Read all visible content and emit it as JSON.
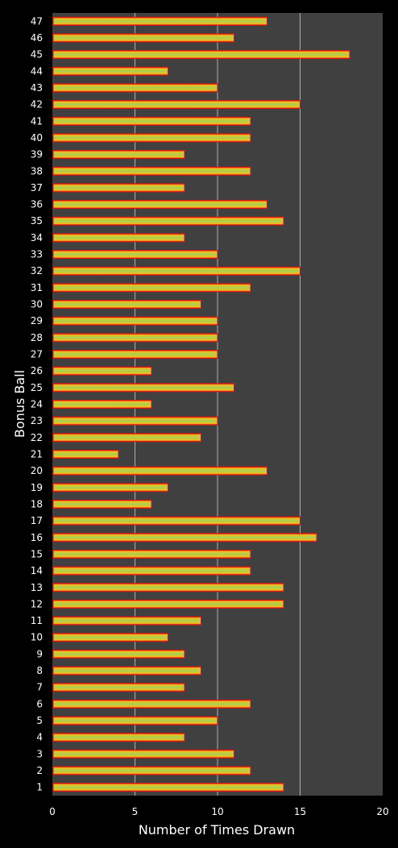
{
  "chart_data": {
    "type": "bar",
    "orientation": "horizontal",
    "xlabel": "Number of Times Drawn",
    "ylabel": "Bonus Ball",
    "xlim": [
      0,
      20
    ],
    "xticks": [
      0,
      5,
      10,
      15,
      20
    ],
    "grid": true,
    "categories": [
      "1",
      "2",
      "3",
      "4",
      "5",
      "6",
      "7",
      "8",
      "9",
      "10",
      "11",
      "12",
      "13",
      "14",
      "15",
      "16",
      "17",
      "18",
      "19",
      "20",
      "21",
      "22",
      "23",
      "24",
      "25",
      "26",
      "27",
      "28",
      "29",
      "30",
      "31",
      "32",
      "33",
      "34",
      "35",
      "36",
      "37",
      "38",
      "39",
      "40",
      "41",
      "42",
      "43",
      "44",
      "45",
      "46",
      "47"
    ],
    "values": [
      14,
      12,
      11,
      8,
      10,
      12,
      8,
      9,
      8,
      7,
      9,
      14,
      14,
      12,
      12,
      16,
      15,
      6,
      7,
      13,
      4,
      9,
      10,
      6,
      11,
      6,
      10,
      10,
      10,
      9,
      12,
      15,
      10,
      8,
      14,
      13,
      8,
      12,
      8,
      12,
      12,
      15,
      10,
      7,
      18,
      11,
      13
    ],
    "colors": {
      "background": "#000000",
      "plot_background": "#404040",
      "gridline": "#b0b0b0",
      "bar_edge": "#e01010",
      "bar_inner": "#f0c020",
      "bar_center": "#a8d050",
      "text": "#ffffff"
    }
  }
}
